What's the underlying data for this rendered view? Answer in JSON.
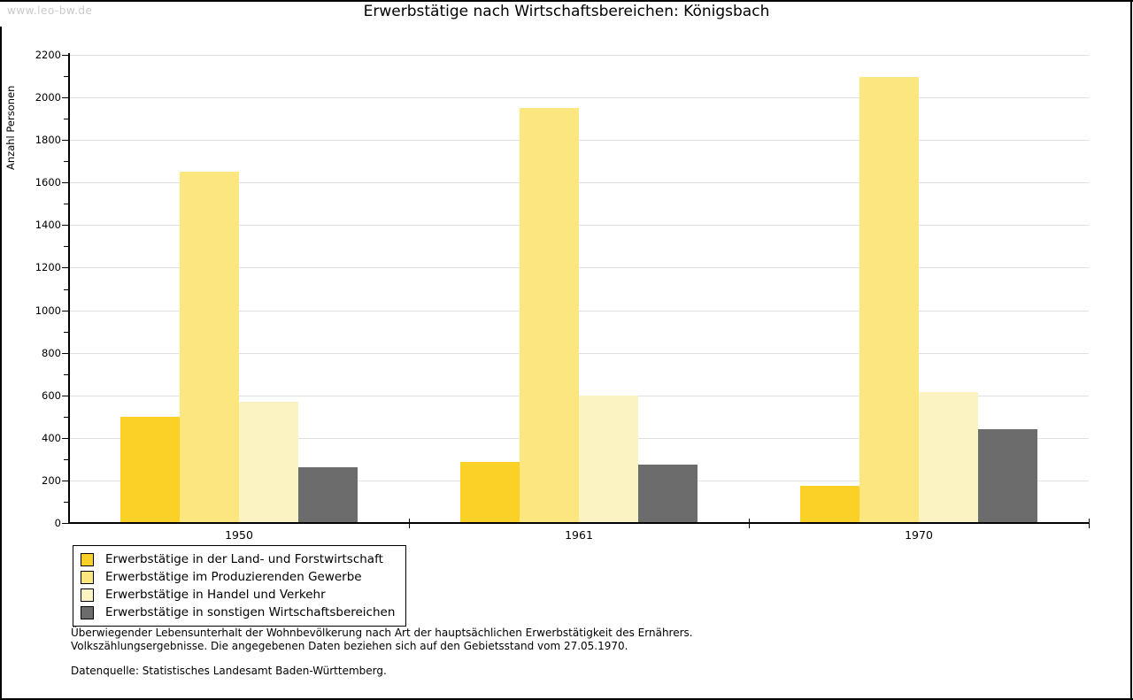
{
  "page": {
    "watermark": "www.leo-bw.de",
    "title": "Erwerbstätige nach Wirtschaftsbereichen: Königsbach"
  },
  "chart_data": {
    "type": "bar",
    "title": "Erwerbstätige nach Wirtschaftsbereichen: Königsbach",
    "xlabel": "",
    "ylabel": "Anzahl Personen",
    "categories": [
      "1950",
      "1961",
      "1970"
    ],
    "series": [
      {
        "name": "Erwerbstätige in der Land- und Forstwirtschaft",
        "color": "#fbd128",
        "values": [
          500,
          285,
          175
        ]
      },
      {
        "name": "Erwerbstätige im Produzierenden Gewerbe",
        "color": "#fbe680",
        "values": [
          1650,
          1950,
          2095
        ]
      },
      {
        "name": "Erwerbstätige in Handel und Verkehr",
        "color": "#fcf3c3",
        "values": [
          570,
          600,
          615
        ]
      },
      {
        "name": "Erwerbstätige in sonstigen Wirtschaftsbereichen",
        "color": "#6c6c6c",
        "values": [
          260,
          275,
          440
        ]
      }
    ],
    "ylim": [
      0,
      2200
    ],
    "ytick_step": 200,
    "yminor_step": 100,
    "grid": true,
    "legend_position": "bottom-left"
  },
  "footnotes": {
    "lines": [
      "Überwiegender Lebensunterhalt der Wohnbevölkerung nach Art der hauptsächlichen Erwerbstätigkeit des Ernährers.",
      "Volkszählungsergebnisse. Die angegebenen Daten beziehen sich auf den Gebietsstand vom 27.05.1970."
    ],
    "source": "Datenquelle: Statistisches Landesamt Baden-Württemberg."
  },
  "colors": {
    "grid": "#e0e0e0",
    "axis": "#000000",
    "watermark_text": "#c9c9c9",
    "title_text": "#000000"
  }
}
